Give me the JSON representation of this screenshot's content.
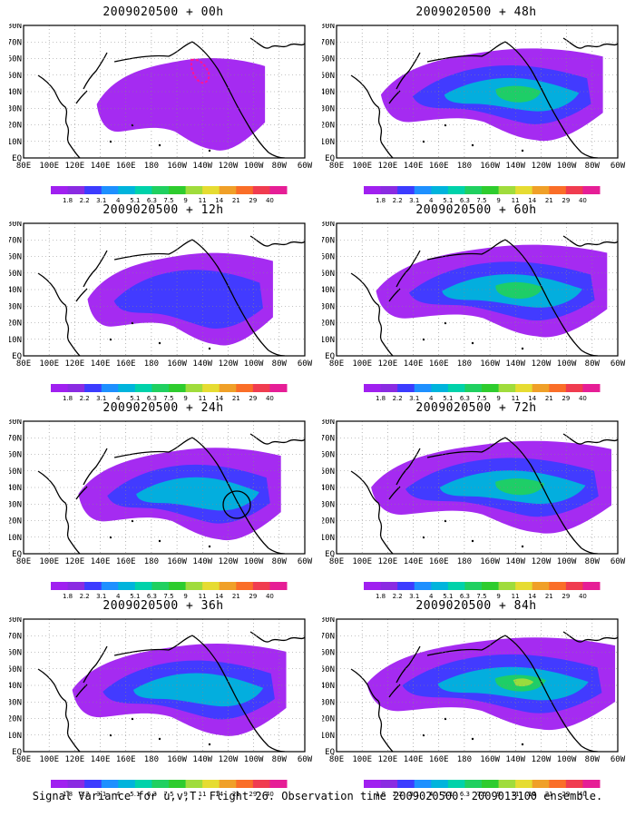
{
  "panels": [
    {
      "title": "2009020500 + 00h",
      "intensity": 0.25,
      "circle": false,
      "dashed_contour": true
    },
    {
      "title": "2009020500 + 12h",
      "intensity": 0.4,
      "circle": false,
      "dashed_contour": false
    },
    {
      "title": "2009020500 + 24h",
      "intensity": 0.55,
      "circle": true,
      "dashed_contour": false
    },
    {
      "title": "2009020500 + 36h",
      "intensity": 0.65,
      "circle": false,
      "dashed_contour": false
    },
    {
      "title": "2009020500 + 48h",
      "intensity": 0.72,
      "circle": false,
      "dashed_contour": false
    },
    {
      "title": "2009020500 + 60h",
      "intensity": 0.8,
      "circle": false,
      "dashed_contour": false
    },
    {
      "title": "2009020500 + 72h",
      "intensity": 0.88,
      "circle": false,
      "dashed_contour": false
    },
    {
      "title": "2009020500 + 84h",
      "intensity": 0.95,
      "circle": false,
      "dashed_contour": false
    }
  ],
  "lat_labels": [
    "80N",
    "70N",
    "60N",
    "50N",
    "40N",
    "30N",
    "20N",
    "10N",
    "EQ"
  ],
  "lon_labels": [
    "80E",
    "100E",
    "120E",
    "140E",
    "160E",
    "180",
    "160W",
    "140W",
    "120W",
    "100W",
    "80W",
    "60W"
  ],
  "colorbar": {
    "labels": [
      "1.8",
      "2.2",
      "3.1",
      "4",
      "5.1",
      "6.3",
      "7.5",
      "9",
      "11",
      "14",
      "21",
      "29",
      "40"
    ],
    "colors": [
      "#a020f0",
      "#8a2be2",
      "#3c3cff",
      "#1e90ff",
      "#00b4dc",
      "#00d2aa",
      "#20d060",
      "#2ecc2e",
      "#a0dc3c",
      "#e6dc32",
      "#f0a028",
      "#fa6e28",
      "#f03c50",
      "#e61e96"
    ]
  },
  "caption": "Signal Variance for u,v,T. Flight 26. Observation time 2009020500. 2009013100 ensemble."
}
